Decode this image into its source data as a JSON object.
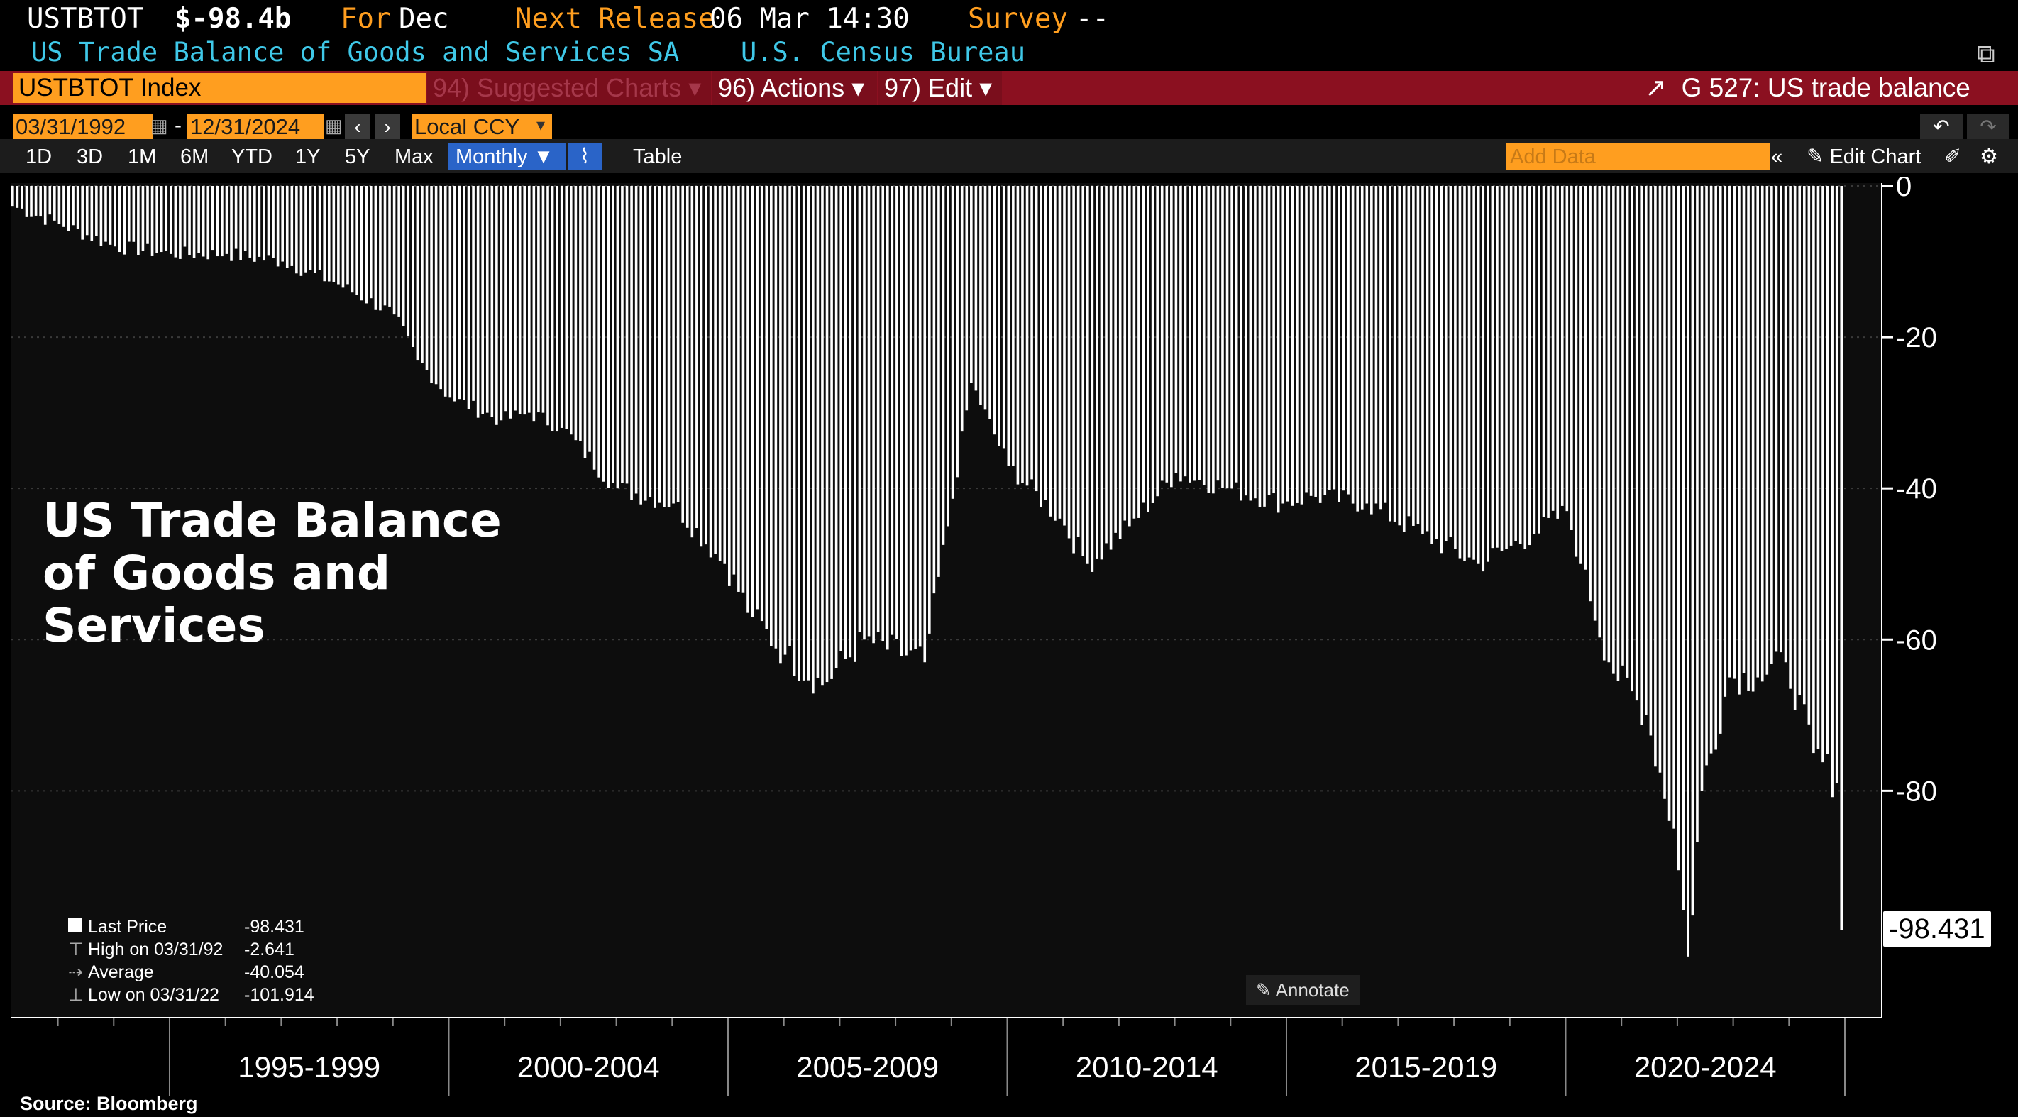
{
  "header": {
    "ticker": "USTBTOT",
    "value": "$-98.4b",
    "for_label": "For",
    "for_value": "Dec",
    "next_release_label": "Next Release",
    "next_release_value": "06 Mar 14:30",
    "survey_label": "Survey",
    "survey_value": "--",
    "description": "US Trade Balance of Goods and Services SA",
    "source_agency": "U.S. Census Bureau"
  },
  "toolbar": {
    "security": "USTBTOT Index",
    "suggested_charts": "94) Suggested Charts",
    "actions": "96) Actions",
    "edit": "97) Edit",
    "chart_ref": "G 527: US trade balance"
  },
  "range": {
    "start": "03/31/1992",
    "end": "12/31/2024",
    "currency": "Local CCY"
  },
  "periods": [
    "1D",
    "3D",
    "1M",
    "6M",
    "YTD",
    "1Y",
    "5Y",
    "Max"
  ],
  "frequency": "Monthly",
  "table_label": "Table",
  "add_data_placeholder": "Add Data",
  "edit_chart_label": "Edit Chart",
  "annotate_label": "Annotate",
  "source_note": "Source: Bloomberg",
  "colors": {
    "accent_orange": "#ff9e1f",
    "header_cyan": "#3fc8e8",
    "toolbar_red": "#8b1020",
    "bars": "#ffffff"
  },
  "legend": {
    "last_price_label": "Last Price",
    "last_price_value": "-98.431",
    "high_label": "High on 03/31/92",
    "high_value": "-2.641",
    "average_label": "Average",
    "average_value": "-40.054",
    "low_label": "Low on 03/31/22",
    "low_value": "-101.914"
  },
  "last_value_tag": "-98.431",
  "chart_data": {
    "type": "bar",
    "title": "US Trade Balance of Goods and Services",
    "frequency": "monthly",
    "x_start": "1992-03",
    "x_end": "2024-12",
    "x_group_labels": [
      "1995-1999",
      "2000-2004",
      "2005-2009",
      "2010-2014",
      "2015-2019",
      "2020-2024"
    ],
    "yticks": [
      0,
      -20,
      -40,
      -60,
      -80
    ],
    "ylim": [
      -110,
      0
    ],
    "grid": true,
    "series": [
      {
        "anchors": [
          [
            "1992-03",
            -2.641
          ],
          [
            "1993-01",
            -5
          ],
          [
            "1994-01",
            -8
          ],
          [
            "1995-01",
            -9
          ],
          [
            "1996-01",
            -9
          ],
          [
            "1997-01",
            -10
          ],
          [
            "1998-01",
            -13
          ],
          [
            "1999-01",
            -17
          ],
          [
            "1999-06",
            -23
          ],
          [
            "2000-01",
            -28
          ],
          [
            "2000-12",
            -31
          ],
          [
            "2001-06",
            -30
          ],
          [
            "2002-01",
            -32
          ],
          [
            "2003-01",
            -40
          ],
          [
            "2004-01",
            -42
          ],
          [
            "2004-12",
            -50
          ],
          [
            "2005-06",
            -57
          ],
          [
            "2006-01",
            -62
          ],
          [
            "2006-09",
            -66
          ],
          [
            "2007-06",
            -60
          ],
          [
            "2008-07",
            -63
          ],
          [
            "2008-12",
            -45
          ],
          [
            "2009-05",
            -26
          ],
          [
            "2010-01",
            -37
          ],
          [
            "2010-12",
            -44
          ],
          [
            "2011-06",
            -50
          ],
          [
            "2012-03",
            -45
          ],
          [
            "2013-01",
            -38
          ],
          [
            "2013-12",
            -40
          ],
          [
            "2014-12",
            -42
          ],
          [
            "2015-06",
            -41
          ],
          [
            "2016-06",
            -42
          ],
          [
            "2017-06",
            -46
          ],
          [
            "2018-06",
            -50
          ],
          [
            "2018-12",
            -48
          ],
          [
            "2019-06",
            -46
          ],
          [
            "2020-01",
            -43
          ],
          [
            "2020-04",
            -50
          ],
          [
            "2020-10",
            -63
          ],
          [
            "2021-06",
            -70
          ],
          [
            "2021-12",
            -85
          ],
          [
            "2022-03",
            -101.914
          ],
          [
            "2022-06",
            -80
          ],
          [
            "2022-12",
            -65
          ],
          [
            "2023-06",
            -65
          ],
          [
            "2023-12",
            -63
          ],
          [
            "2024-06",
            -75
          ],
          [
            "2024-11",
            -79
          ],
          [
            "2024-12",
            -98.431
          ]
        ]
      }
    ]
  }
}
